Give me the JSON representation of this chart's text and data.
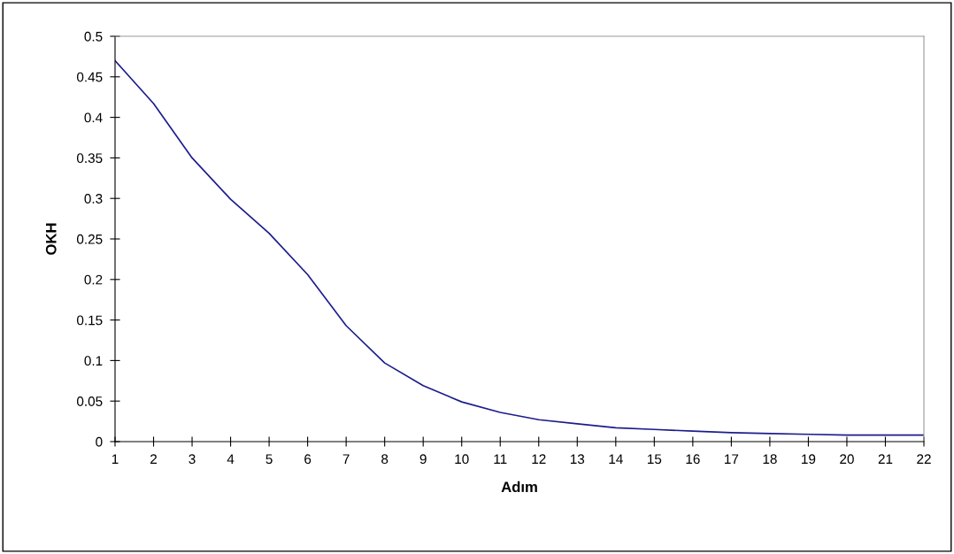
{
  "chart_data": {
    "type": "line",
    "xlabel": "Adım",
    "ylabel": "OKH",
    "x": [
      1,
      2,
      3,
      4,
      5,
      6,
      7,
      8,
      9,
      10,
      11,
      12,
      13,
      14,
      15,
      16,
      17,
      18,
      19,
      20,
      21,
      22
    ],
    "series": [
      {
        "color": "#1c1c8c",
        "values": [
          0.47,
          0.417,
          0.35,
          0.299,
          0.257,
          0.206,
          0.143,
          0.097,
          0.069,
          0.049,
          0.036,
          0.027,
          0.022,
          0.017,
          0.015,
          0.013,
          0.011,
          0.01,
          0.009,
          0.008,
          0.008,
          0.008
        ]
      }
    ],
    "xlim": [
      1,
      22
    ],
    "xticks": [
      1,
      2,
      3,
      4,
      5,
      6,
      7,
      8,
      9,
      10,
      11,
      12,
      13,
      14,
      15,
      16,
      17,
      18,
      19,
      20,
      21,
      22
    ],
    "ylim": [
      0,
      0.5
    ],
    "yticks": [
      0,
      0.05,
      0.1,
      0.15,
      0.2,
      0.25,
      0.3,
      0.35,
      0.4,
      0.45,
      0.5
    ]
  }
}
